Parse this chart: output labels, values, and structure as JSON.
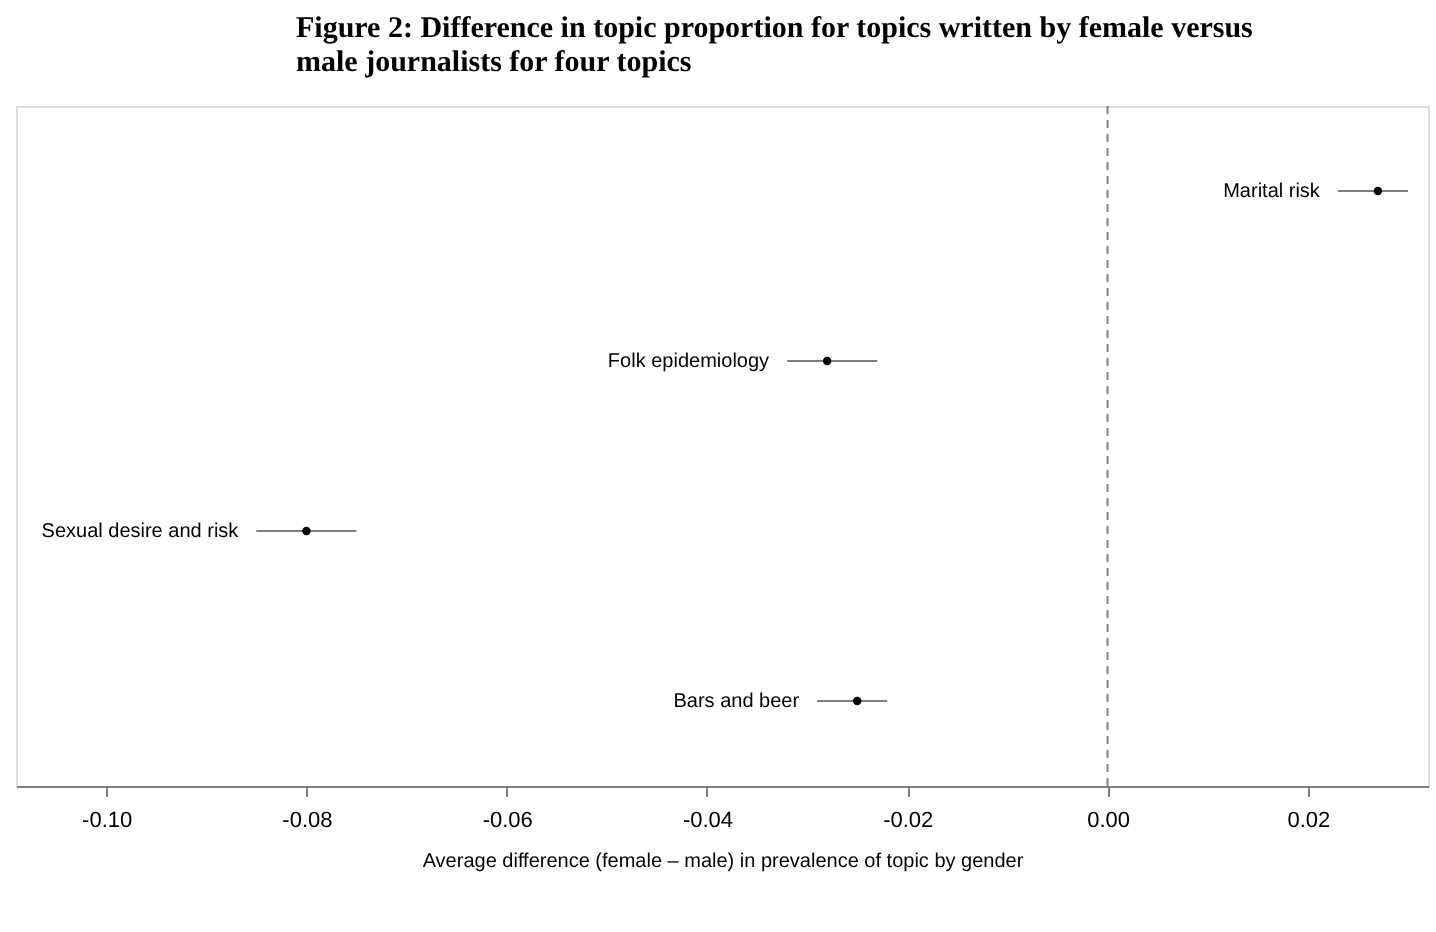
{
  "chart_data": {
    "type": "scatter",
    "orientation": "horizontal",
    "title": "Figure 2:  Difference in topic proportion for topics written by female versus male journalists for four topics",
    "xlabel": "Average difference (female – male) in prevalence of topic by gender",
    "categories": [
      "Marital risk",
      "Folk epidemiology",
      "Sexual desire and risk",
      "Bars and beer"
    ],
    "series": [
      {
        "color": "#000000",
        "values": [
          0.027,
          -0.028,
          -0.08,
          -0.025
        ],
        "errors": [
          [
            0.023,
            0.03
          ],
          [
            -0.032,
            -0.023
          ],
          [
            -0.085,
            -0.075
          ],
          [
            -0.029,
            -0.022
          ]
        ]
      }
    ],
    "xlim": [
      -0.109,
      0.032
    ],
    "xticks": [
      {
        "value": -0.1,
        "label": "-0.10"
      },
      {
        "value": -0.08,
        "label": "-0.08"
      },
      {
        "value": -0.06,
        "label": "-0.06"
      },
      {
        "value": -0.04,
        "label": "-0.04"
      },
      {
        "value": -0.02,
        "label": "-0.02"
      },
      {
        "value": 0,
        "label": "0.00"
      },
      {
        "value": 0.02,
        "label": "0.02"
      }
    ],
    "ref_lines": [
      {
        "axis": "x",
        "value": 0,
        "color": "#808080",
        "line_style": "dashed"
      }
    ],
    "grid": false,
    "marker": "circle"
  }
}
